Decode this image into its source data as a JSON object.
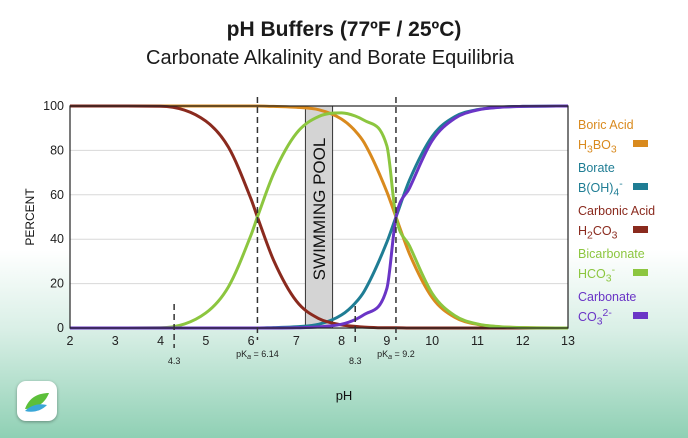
{
  "title": "pH Buffers (77ºF / 25ºC)",
  "subtitle": "Carbonate Alkalinity and Borate Equilibria",
  "chart_data": {
    "type": "line",
    "xlabel": "pH",
    "ylabel": "PERCENT",
    "xlim": [
      2,
      13
    ],
    "ylim": [
      0,
      100
    ],
    "xticks": [
      2,
      3,
      4,
      5,
      6,
      7,
      8,
      9,
      10,
      11,
      12,
      13
    ],
    "yticks": [
      0,
      20,
      40,
      60,
      80,
      100
    ],
    "grid": "horizontal",
    "legend": "right",
    "x": [
      2,
      3,
      4,
      5,
      5.5,
      6,
      6.14,
      6.5,
      7,
      7.5,
      8,
      8.3,
      8.5,
      9,
      9.2,
      9.5,
      10,
      10.5,
      11,
      11.5,
      12,
      13
    ],
    "series": [
      {
        "name": "Boric Acid H3BO3",
        "color": "#d98a1e",
        "values": [
          100,
          100,
          100,
          100,
          100,
          100,
          100,
          99.8,
          99.4,
          98.3,
          94.1,
          88.8,
          83.4,
          61.3,
          50,
          33.4,
          13.7,
          4.8,
          1.6,
          0.5,
          0.2,
          0
        ]
      },
      {
        "name": "Borate B(OH)4-",
        "color": "#1f7d94",
        "values": [
          0,
          0,
          0,
          0,
          0,
          0,
          0,
          0.2,
          0.6,
          1.7,
          5.9,
          11.2,
          16.6,
          38.7,
          50,
          66.6,
          86.3,
          95.2,
          98.4,
          99.5,
          99.8,
          100
        ]
      },
      {
        "name": "Carbonic Acid H2CO3",
        "color": "#8a2a1e",
        "values": [
          100,
          100,
          99.9,
          93.2,
          81.4,
          58.0,
          50,
          30.4,
          12.1,
          4.2,
          1.4,
          0.7,
          0.4,
          0.1,
          0.1,
          0,
          0,
          0,
          0,
          0,
          0,
          0
        ]
      },
      {
        "name": "Bicarbonate HCO3-",
        "color": "#8cc63f",
        "values": [
          0,
          0,
          0.1,
          6.8,
          18.6,
          42.0,
          50,
          69.6,
          87.7,
          95.3,
          96.9,
          95.5,
          93.5,
          82.0,
          50,
          37.0,
          15.6,
          5.6,
          1.8,
          0.6,
          0.2,
          0
        ]
      },
      {
        "name": "Carbonate CO3 2-",
        "color": "#6a35c6",
        "values": [
          0,
          0,
          0,
          0,
          0,
          0,
          0,
          0,
          0.1,
          0.5,
          1.7,
          3.8,
          6.1,
          17.9,
          50,
          63.0,
          84.4,
          94.4,
          98.2,
          99.4,
          99.8,
          100
        ]
      }
    ],
    "vlines": [
      {
        "x": 4.3,
        "label": "4.3"
      },
      {
        "x": 6.14,
        "label": "pKa = 6.14"
      },
      {
        "x": 8.3,
        "label": "8.3"
      },
      {
        "x": 9.2,
        "label": "pKa = 9.2"
      }
    ],
    "band": {
      "from": 7.2,
      "to": 7.8,
      "label": "SWIMMING POOL"
    }
  },
  "legend": [
    {
      "name": "Boric Acid",
      "formula_main": "H",
      "formula_sub1": "3",
      "formula_mid": "BO",
      "formula_sub2": "3",
      "formula_sup": "",
      "color": "#d98a1e"
    },
    {
      "name": "Borate",
      "formula_main": "B(OH)",
      "formula_sub1": "4",
      "formula_mid": "",
      "formula_sub2": "",
      "formula_sup": "-",
      "color": "#1f7d94"
    },
    {
      "name": "Carbonic Acid",
      "formula_main": "H",
      "formula_sub1": "2",
      "formula_mid": "CO",
      "formula_sub2": "3",
      "formula_sup": "",
      "color": "#8a2a1e"
    },
    {
      "name": "Bicarbonate",
      "formula_main": "HCO",
      "formula_sub1": "3",
      "formula_mid": "",
      "formula_sub2": "",
      "formula_sup": "-",
      "color": "#8cc63f"
    },
    {
      "name": "Carbonate",
      "formula_main": "CO",
      "formula_sub1": "3",
      "formula_mid": "",
      "formula_sub2": "",
      "formula_sup": "2-",
      "color": "#6a35c6"
    }
  ],
  "logo": {
    "icon": "leaf-logo-icon",
    "colors": [
      "#3aa7d8",
      "#5cbf3a"
    ]
  }
}
